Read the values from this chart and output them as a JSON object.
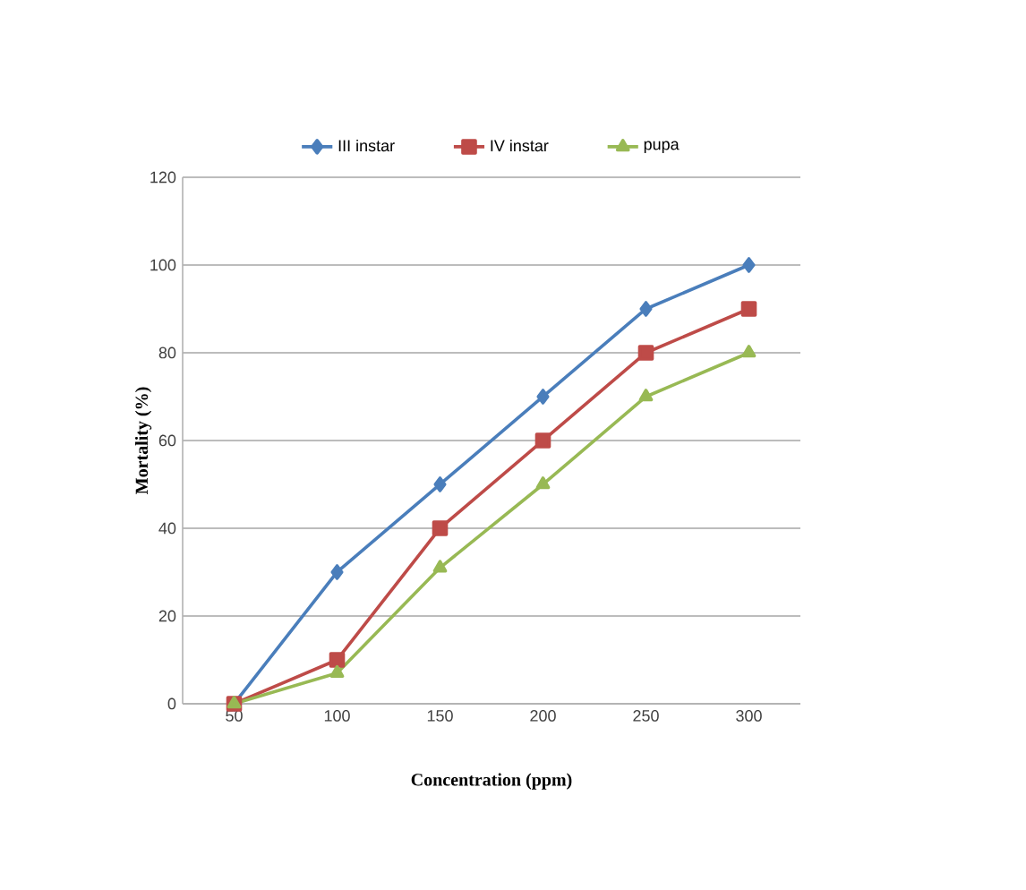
{
  "chart_data": {
    "type": "line",
    "xlabel": "Concentration (ppm)",
    "ylabel": "Mortality (%)",
    "categories": [
      "50",
      "100",
      "150",
      "200",
      "250",
      "300"
    ],
    "series": [
      {
        "name": "III instar",
        "color": "#4a7ebb",
        "marker": "diamond",
        "values": [
          0,
          30,
          50,
          70,
          90,
          100
        ]
      },
      {
        "name": "IV instar",
        "color": "#be4b48",
        "marker": "square",
        "values": [
          0,
          10,
          40,
          60,
          80,
          90
        ]
      },
      {
        "name": "pupa",
        "color": "#98b954",
        "marker": "triangle",
        "values": [
          0,
          7,
          31,
          50,
          70,
          80
        ]
      }
    ],
    "ylim": [
      0,
      120
    ],
    "yticks": [
      0,
      20,
      40,
      60,
      80,
      100,
      120
    ],
    "grid": "y",
    "legend": "top",
    "line_style": "solid"
  }
}
